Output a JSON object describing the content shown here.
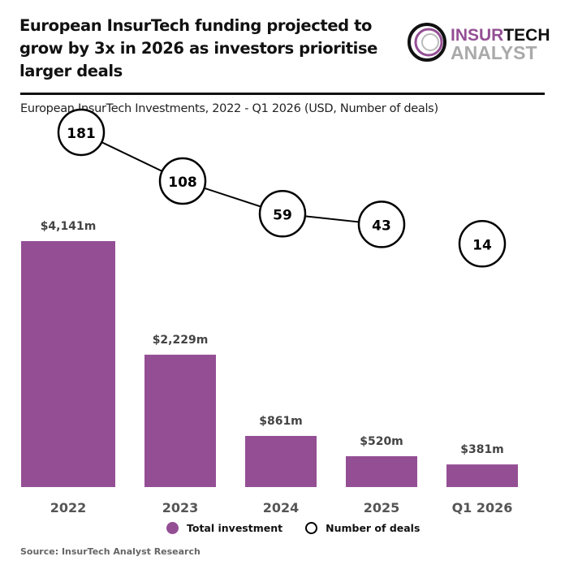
{
  "header": {
    "title": "European InsurTech funding projected to grow by 3x in 2026 as investors prioritise larger deals",
    "logo_top": "INSURTECH",
    "logo_top_accent": "INSUR",
    "logo_top_rest": "TECH",
    "logo_bottom": "ANALYST"
  },
  "chart_data": {
    "type": "bar",
    "title": "European InsurTech Investments, 2022 - Q1 2026 (USD, Number of deals)",
    "categories": [
      "2022",
      "2023",
      "2024",
      "2025",
      "Q1 2026"
    ],
    "series": [
      {
        "name": "Total investment",
        "type": "bar",
        "values": [
          4141,
          2229,
          861,
          520,
          381
        ],
        "labels": [
          "$4,141m",
          "$2,229m",
          "$861m",
          "$520m",
          "$381m"
        ],
        "color": "#944f94"
      },
      {
        "name": "Number of deals",
        "type": "line",
        "values": [
          181,
          108,
          59,
          43,
          14
        ],
        "connected": [
          true,
          true,
          true,
          true,
          false
        ],
        "color": "#000000"
      }
    ],
    "legend_position": "bottom",
    "grid": false
  },
  "legend": {
    "items": [
      "Total investment",
      "Number of deals"
    ]
  },
  "footer": {
    "source": "Source: InsurTech Analyst Research"
  }
}
